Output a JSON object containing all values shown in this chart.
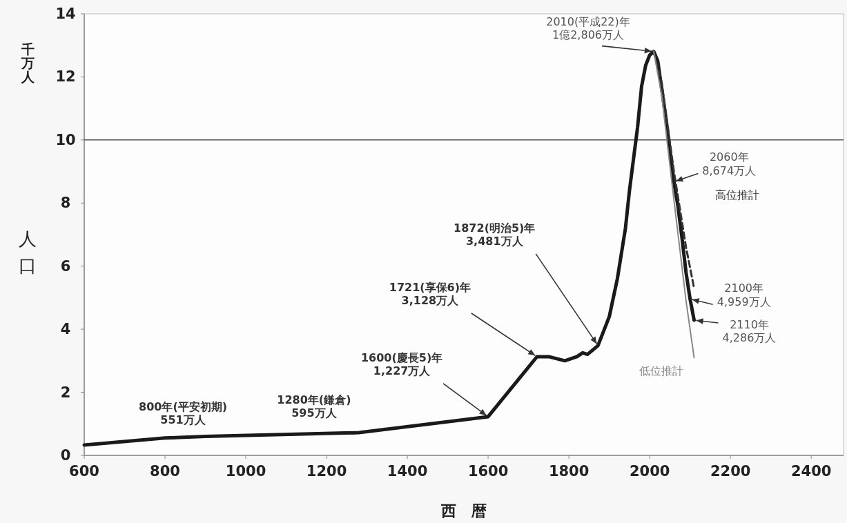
{
  "chart_data": {
    "type": "line",
    "xlabel": "西暦",
    "ylabel": "人口",
    "xlim": [
      600,
      2480
    ],
    "ylim": [
      0,
      14
    ],
    "xticks": [
      600,
      800,
      1000,
      1200,
      1400,
      1600,
      1800,
      2000,
      2200,
      2400
    ],
    "yticks": [
      0,
      2,
      4,
      6,
      8,
      10,
      12,
      14
    ],
    "grid": false,
    "marker": "none",
    "ref_lines": [
      {
        "axis": "y",
        "value": 10,
        "color": "#555555"
      }
    ],
    "series": [
      {
        "color": "#1a1a1a",
        "line_style": "solid",
        "x": [
          600,
          800,
          900,
          1280,
          1600,
          1721,
          1750,
          1790,
          1820,
          1834,
          1846,
          1872,
          1900,
          1920,
          1940,
          1950,
          1960,
          1970,
          1980,
          1990,
          2000,
          2010,
          2020,
          2030,
          2040,
          2050,
          2060,
          2070,
          2080,
          2090,
          2100,
          2110
        ],
        "values": [
          0.33,
          0.551,
          0.6,
          0.72,
          1.227,
          3.128,
          3.13,
          3.0,
          3.13,
          3.25,
          3.2,
          3.481,
          4.4,
          5.6,
          7.2,
          8.4,
          9.4,
          10.4,
          11.7,
          12.36,
          12.69,
          12.806,
          12.5,
          11.6,
          10.7,
          9.7,
          8.674,
          7.9,
          6.9,
          5.8,
          4.959,
          4.286
        ]
      },
      {
        "name": "高位推計",
        "color": "#333333",
        "line_style": "dashed",
        "x": [
          2010,
          2030,
          2060,
          2090,
          2110
        ],
        "values": [
          12.806,
          11.8,
          9.0,
          6.6,
          5.3
        ]
      },
      {
        "name": "低位推計",
        "color": "#888888",
        "line_style": "solid",
        "x": [
          2010,
          2030,
          2060,
          2090,
          2110
        ],
        "values": [
          12.806,
          11.4,
          8.1,
          4.9,
          3.1
        ]
      }
    ],
    "annotations": [
      "千万人",
      {
        "text": "800年(平安初期)\n551万人",
        "x": 800,
        "y": 0.551
      },
      {
        "text": "1280年(鎌倉)\n595万人",
        "x": 1280,
        "y": 0.595
      },
      {
        "text": "1600(慶長5)年\n1,227万人",
        "x": 1600,
        "y": 1.227
      },
      {
        "text": "1721(享保6)年\n3,128万人",
        "x": 1721,
        "y": 3.128
      },
      {
        "text": "1872(明治5)年\n3,481万人",
        "x": 1872,
        "y": 3.481
      },
      {
        "text": "2010(平成22)年\n1億2,806万人",
        "x": 2010,
        "y": 12.806
      },
      {
        "text": "2060年\n8,674万人",
        "x": 2060,
        "y": 8.674
      },
      {
        "text": "2100年\n4,959万人",
        "x": 2100,
        "y": 4.959
      },
      {
        "text": "2110年\n4,286万人",
        "x": 2110,
        "y": 4.286
      }
    ]
  }
}
